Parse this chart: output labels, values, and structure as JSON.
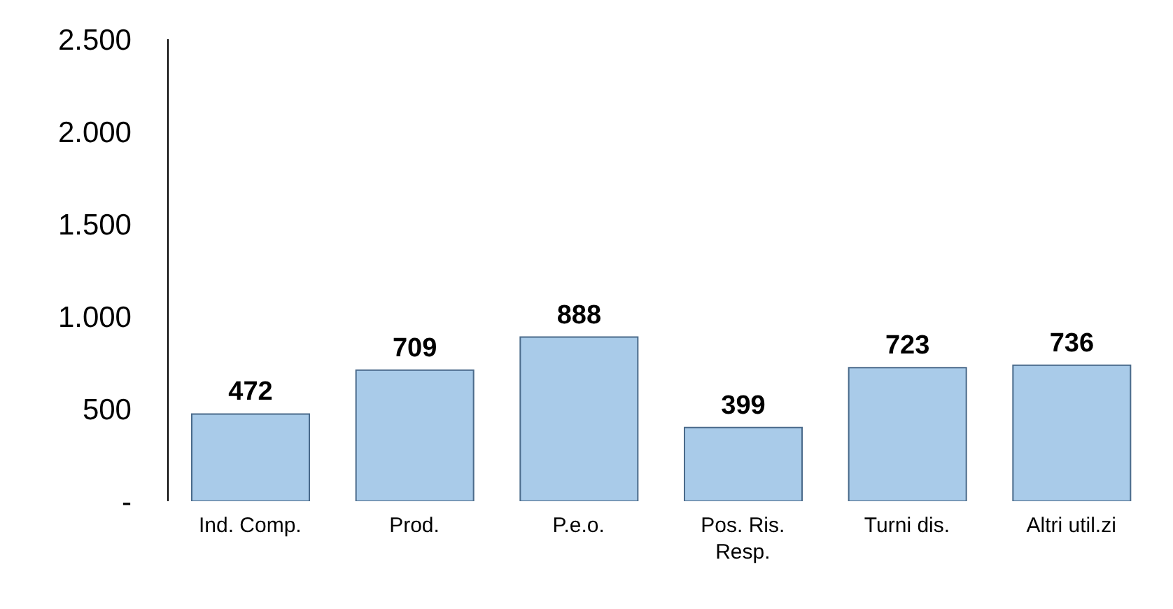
{
  "chart_data": {
    "type": "bar",
    "categories": [
      "Ind. Comp.",
      "Prod.",
      "P.e.o.",
      "Pos. Ris. Resp.",
      "Turni dis.",
      "Altri util.zi"
    ],
    "values": [
      472,
      709,
      888,
      399,
      723,
      736
    ],
    "color": "#a9cbe9",
    "ylim": [
      0,
      2500
    ],
    "yticks": [
      {
        "value": 0,
        "label": "-"
      },
      500,
      {
        "value": 1000,
        "label": "1.000"
      },
      {
        "value": 1500,
        "label": "1.500"
      },
      {
        "value": 2000,
        "label": "2.000"
      },
      {
        "value": 2500,
        "label": "2.500"
      }
    ],
    "grid": false,
    "data_labels": true
  }
}
